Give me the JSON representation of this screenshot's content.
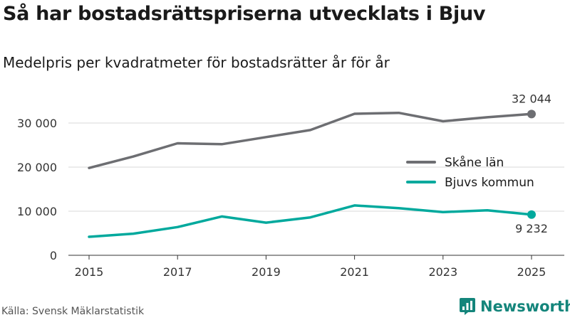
{
  "header": {
    "title": "Så har bostadsrättspriserna utvecklats i Bjuv",
    "subtitle": "Medelpris per kvadratmeter för bostadsrätter år för år"
  },
  "footer": {
    "source": "Källa: Svensk Mäklarstatistik",
    "brand": "Newsworthy",
    "brand_icon": "bar-chart-icon"
  },
  "colors": {
    "skane": "#6d6e72",
    "bjuv": "#00a99d",
    "brand": "#14857b",
    "grid": "#d9d9d9"
  },
  "chart_data": {
    "type": "line",
    "title": "Så har bostadsrättspriserna utvecklats i Bjuv",
    "subtitle": "Medelpris per kvadratmeter för bostadsrätter år för år",
    "xlabel": "",
    "ylabel": "",
    "x": [
      2015,
      2016,
      2017,
      2018,
      2019,
      2020,
      2021,
      2022,
      2023,
      2024,
      2025
    ],
    "x_ticks": [
      "2015",
      "2017",
      "2019",
      "2021",
      "2023",
      "2025"
    ],
    "xlim": [
      2015,
      2025
    ],
    "ylim": [
      0,
      32044
    ],
    "y_ticks": [
      {
        "value": 0,
        "label": "0"
      },
      {
        "value": 10000,
        "label": "10 000"
      },
      {
        "value": 20000,
        "label": "20 000"
      },
      {
        "value": 30000,
        "label": "30 000"
      }
    ],
    "grid": true,
    "legend_position": "right",
    "series": [
      {
        "name": "Skåne län",
        "color": "#6d6e72",
        "values": [
          19800,
          22400,
          25400,
          25200,
          26800,
          28400,
          32100,
          32300,
          30400,
          31300,
          32044
        ],
        "end_label": "32 044"
      },
      {
        "name": "Bjuvs kommun",
        "color": "#00a99d",
        "values": [
          4200,
          4900,
          6400,
          8800,
          7400,
          8600,
          11300,
          10700,
          9800,
          10200,
          9232
        ],
        "end_label": "9 232"
      }
    ]
  }
}
